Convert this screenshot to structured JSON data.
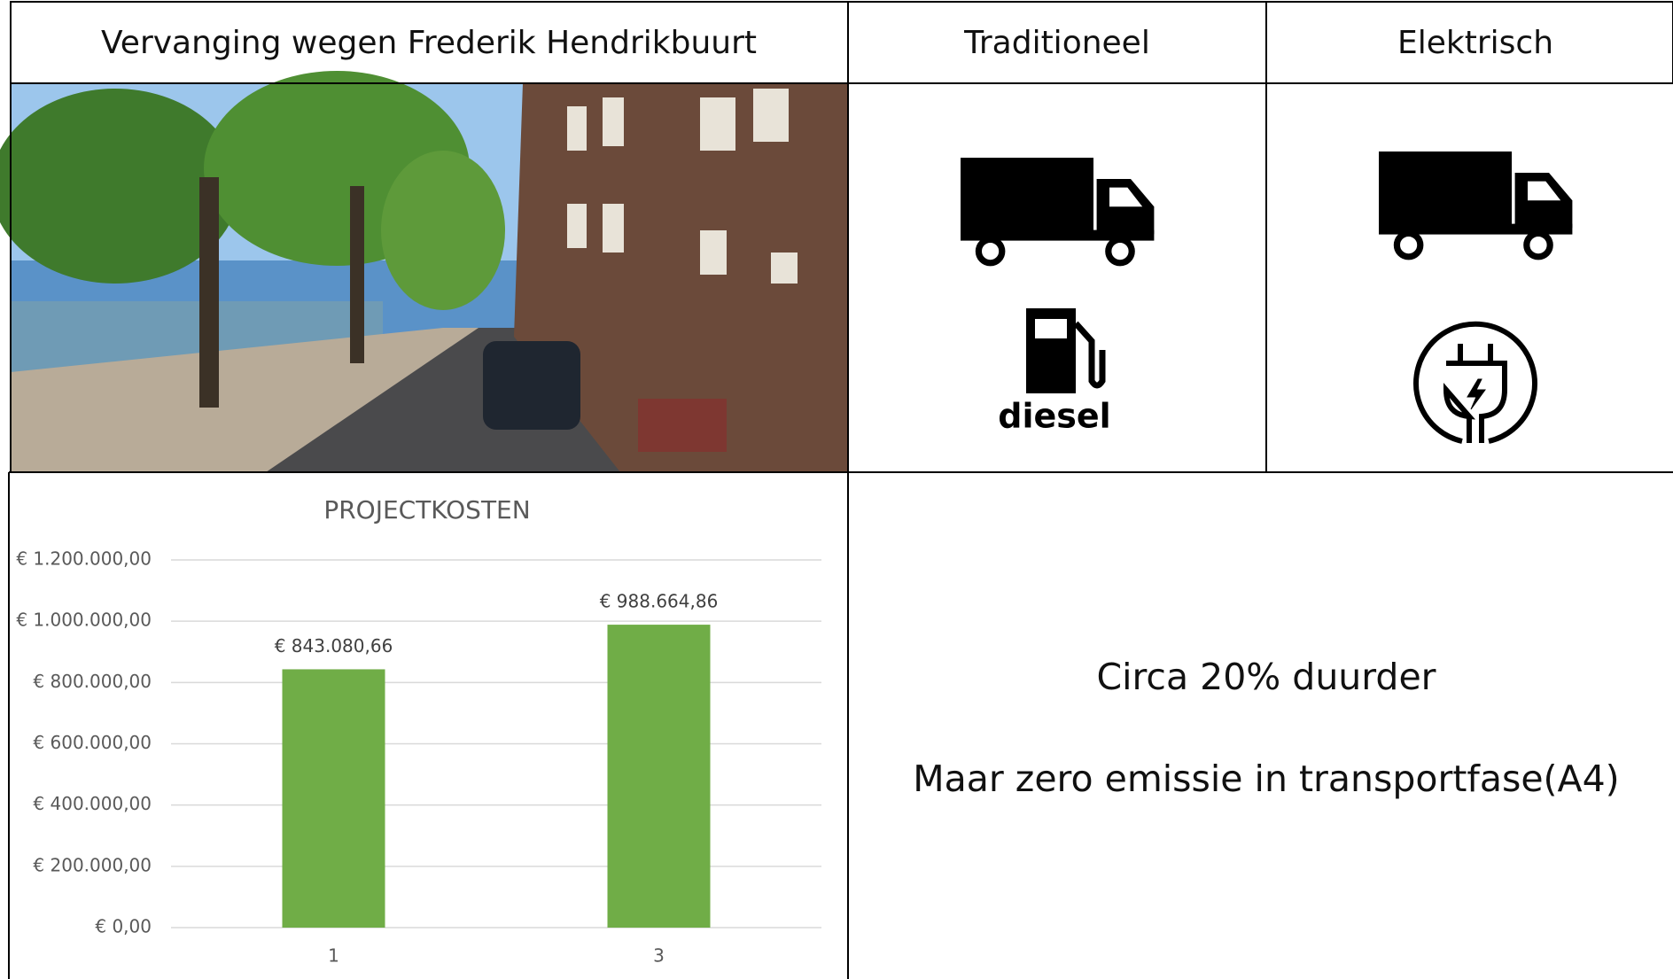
{
  "header": {
    "title": "Vervanging wegen Frederik Hendrikbuurt",
    "col2": "Traditioneel",
    "col3": "Elektrisch"
  },
  "icons": {
    "diesel": "diesel"
  },
  "chart_data": {
    "type": "bar",
    "title": "PROJECTKOSTEN",
    "categories": [
      "1",
      "3"
    ],
    "values": [
      843080.66,
      988664.86
    ],
    "value_labels": [
      "€ 843.080,66",
      "€ 988.664,86"
    ],
    "color": "#70ad47",
    "ylim": [
      0,
      1200000
    ],
    "yticks": [
      {
        "value": 0,
        "label": "€ 0,00"
      },
      {
        "value": 200000,
        "label": "€ 200.000,00"
      },
      {
        "value": 400000,
        "label": "€ 400.000,00"
      },
      {
        "value": 600000,
        "label": "€ 600.000,00"
      },
      {
        "value": 800000,
        "label": "€ 800.000,00"
      },
      {
        "value": 1000000,
        "label": "€ 1.000.000,00"
      },
      {
        "value": 1200000,
        "label": "€ 1.200.000,00"
      }
    ],
    "grid": true
  },
  "conclusion": {
    "line1": "Circa 20% duurder",
    "line2": "Maar zero emissie in transportfase(A4)"
  }
}
